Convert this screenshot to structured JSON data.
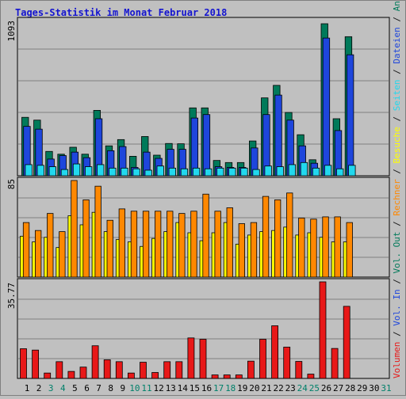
{
  "chart_data": {
    "type": "bar",
    "title": "Tages-Statistik im Monat Februar 2018",
    "days": [
      "1",
      "2",
      "3",
      "4",
      "5",
      "6",
      "7",
      "8",
      "9",
      "10",
      "11",
      "12",
      "13",
      "14",
      "15",
      "16",
      "17",
      "18",
      "19",
      "20",
      "21",
      "22",
      "23",
      "24",
      "25",
      "26",
      "27",
      "28",
      "29",
      "30",
      "31"
    ],
    "weekend_days": [
      "3",
      "4",
      "10",
      "11",
      "17",
      "18",
      "24",
      "25",
      "31"
    ],
    "panels": {
      "top": {
        "ymax_label": "1093",
        "ymax": 1093,
        "series": [
          {
            "name": "Anfragen",
            "color": "#007a5a",
            "values": [
              420,
              400,
              175,
              155,
              205,
              155,
              470,
              215,
              260,
              140,
              282,
              148,
              232,
              230,
              488,
              488,
              110,
              95,
              95,
              250,
              560,
              650,
              455,
              295,
              115,
              1093,
              410,
              1000
            ]
          },
          {
            "name": "Dateien",
            "color": "#1e46dc",
            "values": [
              355,
              335,
              120,
              145,
              170,
              130,
              410,
              180,
              210,
              60,
              170,
              125,
              190,
              190,
              415,
              440,
              65,
              60,
              60,
              200,
              440,
              580,
              400,
              215,
              90,
              990,
              325,
              870
            ]
          },
          {
            "name": "Seiten",
            "color": "#22d8ee",
            "values": [
              80,
              75,
              65,
              45,
              85,
              65,
              80,
              55,
              55,
              50,
              40,
              70,
              55,
              50,
              55,
              50,
              55,
              55,
              55,
              45,
              70,
              65,
              80,
              95,
              55,
              75,
              50,
              75
            ]
          }
        ]
      },
      "middle": {
        "ymax_label": "85",
        "ymax": 85,
        "series": [
          {
            "name": "Besuche",
            "color": "#ffff00",
            "values": [
              36,
              31,
              35,
              26,
              54,
              46,
              57,
              40,
              33,
              31,
              27,
              34,
              40,
              48,
              39,
              32,
              39,
              48,
              29,
              37,
              40,
              41,
              44,
              37,
              39,
              35,
              31,
              31
            ]
          },
          {
            "name": "Rechner",
            "color": "#ff8800",
            "values": [
              48,
              41,
              56,
              40,
              85,
              68,
              80,
              50,
              60,
              58,
              58,
              58,
              58,
              56,
              58,
              73,
              58,
              61,
              47,
              48,
              71,
              68,
              74,
              52,
              51,
              53,
              53,
              48
            ]
          }
        ]
      },
      "bottom": {
        "ymax_label": "35.77",
        "ymax": 35.77,
        "series": [
          {
            "name": "Volumen",
            "color": "#e81818",
            "values": [
              11,
              10.5,
              2,
              6.2,
              2.6,
              4.2,
              12.1,
              6.9,
              6.2,
              2,
              6,
              2.2,
              6.2,
              6.2,
              15,
              14.5,
              1.3,
              1.3,
              1.3,
              6.4,
              14.5,
              19.5,
              11.6,
              6.3,
              1.6,
              35.77,
              11.1,
              26.7
            ]
          }
        ]
      }
    },
    "legend": [
      {
        "text": "Volumen",
        "color": "#e81818"
      },
      {
        "text": " / ",
        "color": "#1a1a1a"
      },
      {
        "text": "Vol. In",
        "color": "#1e46dc"
      },
      {
        "text": " / ",
        "color": "#1a1a1a"
      },
      {
        "text": "Vol. Out",
        "color": "#007a5a"
      },
      {
        "text": " / ",
        "color": "#1a1a1a"
      },
      {
        "text": "Rechner",
        "color": "#ff8800"
      },
      {
        "text": " / ",
        "color": "#1a1a1a"
      },
      {
        "text": "Besuche",
        "color": "#ffff00"
      },
      {
        "text": " / ",
        "color": "#1a1a1a"
      },
      {
        "text": "Seiten",
        "color": "#22d8ee"
      },
      {
        "text": " / ",
        "color": "#1a1a1a"
      },
      {
        "text": "Dateien",
        "color": "#1e46dc"
      },
      {
        "text": " / ",
        "color": "#1a1a1a"
      },
      {
        "text": "Anfragen",
        "color": "#007a5a"
      }
    ],
    "colors": {
      "background": "#c0c0c0",
      "gridline": "#7f7f7f",
      "title": "#1414d0",
      "weekday_label": "#000000",
      "weekend_label": "#00806a"
    }
  }
}
